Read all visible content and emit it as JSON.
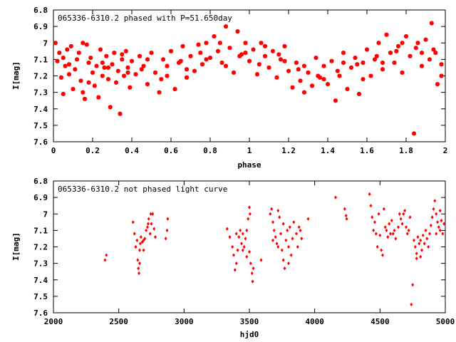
{
  "chart_data": [
    {
      "type": "scatter",
      "title": "065336-6310.2 phased with P=51.650day",
      "xlabel": "phase",
      "ylabel": "I[mag]",
      "xlim": [
        0,
        2
      ],
      "ylim": [
        6.8,
        7.6
      ],
      "y_inverted": true,
      "x_ticks": [
        "0",
        "0.2",
        "0.4",
        "0.6",
        "0.8",
        "1",
        "1.2",
        "1.4",
        "1.6",
        "1.8",
        "2"
      ],
      "y_ticks": [
        "6.8",
        "6.9",
        "7",
        "7.1",
        "7.2",
        "7.3",
        "7.4",
        "7.5",
        "7.6"
      ],
      "grid": false,
      "marker_color": "#ff0000",
      "points": [
        [
          0.01,
          7.0
        ],
        [
          0.02,
          7.11
        ],
        [
          0.03,
          7.06
        ],
        [
          0.04,
          7.21
        ],
        [
          0.05,
          7.31
        ],
        [
          0.06,
          7.14
        ],
        [
          0.07,
          7.04
        ],
        [
          0.08,
          7.19
        ],
        [
          0.09,
          7.02
        ],
        [
          0.1,
          7.28
        ],
        [
          0.11,
          7.16
        ],
        [
          0.12,
          7.1
        ],
        [
          0.13,
          7.06
        ],
        [
          0.14,
          7.23
        ],
        [
          0.15,
          7.3
        ],
        [
          0.16,
          7.34
        ],
        [
          0.17,
          7.01
        ],
        [
          0.18,
          7.12
        ],
        [
          0.19,
          7.09
        ],
        [
          0.2,
          7.18
        ],
        [
          0.21,
          7.26
        ],
        [
          0.22,
          7.14
        ],
        [
          0.23,
          7.33
        ],
        [
          0.24,
          7.04
        ],
        [
          0.25,
          7.2
        ],
        [
          0.26,
          7.15
        ],
        [
          0.27,
          7.08
        ],
        [
          0.28,
          7.22
        ],
        [
          0.29,
          7.39
        ],
        [
          0.3,
          7.13
        ],
        [
          0.31,
          7.06
        ],
        [
          0.32,
          7.24
        ],
        [
          0.33,
          7.17
        ],
        [
          0.34,
          7.43
        ],
        [
          0.35,
          7.1
        ],
        [
          0.36,
          7.2
        ],
        [
          0.37,
          7.05
        ],
        [
          0.38,
          7.15
        ],
        [
          0.39,
          7.27
        ],
        [
          0.4,
          7.11
        ],
        [
          0.42,
          7.19
        ],
        [
          0.44,
          7.08
        ],
        [
          0.46,
          7.14
        ],
        [
          0.48,
          7.25
        ],
        [
          0.5,
          7.06
        ],
        [
          0.52,
          7.18
        ],
        [
          0.54,
          7.3
        ],
        [
          0.56,
          7.1
        ],
        [
          0.58,
          7.2
        ],
        [
          0.6,
          7.05
        ],
        [
          0.62,
          7.28
        ],
        [
          0.64,
          7.12
        ],
        [
          0.66,
          7.02
        ],
        [
          0.68,
          7.21
        ],
        [
          0.7,
          7.08
        ],
        [
          0.72,
          7.17
        ],
        [
          0.74,
          7.01
        ],
        [
          0.76,
          7.13
        ],
        [
          0.78,
          7.0
        ],
        [
          0.8,
          7.09
        ],
        [
          0.82,
          6.96
        ],
        [
          0.84,
          7.05
        ],
        [
          0.86,
          7.12
        ],
        [
          0.88,
          6.9
        ],
        [
          0.9,
          7.03
        ],
        [
          0.92,
          7.18
        ],
        [
          0.94,
          6.93
        ],
        [
          0.96,
          7.07
        ],
        [
          0.98,
          7.0
        ],
        [
          1.0,
          7.11
        ],
        [
          1.02,
          7.04
        ],
        [
          1.04,
          7.19
        ],
        [
          1.06,
          7.0
        ],
        [
          1.08,
          7.08
        ],
        [
          1.1,
          7.15
        ],
        [
          1.12,
          7.05
        ],
        [
          1.14,
          7.21
        ],
        [
          1.16,
          7.1
        ],
        [
          1.18,
          7.02
        ],
        [
          1.2,
          7.17
        ],
        [
          1.22,
          7.27
        ],
        [
          1.24,
          7.12
        ],
        [
          1.26,
          7.23
        ],
        [
          1.28,
          7.3
        ],
        [
          1.3,
          7.18
        ],
        [
          1.32,
          7.26
        ],
        [
          1.34,
          7.09
        ],
        [
          1.36,
          7.21
        ],
        [
          1.38,
          7.14
        ],
        [
          1.4,
          7.25
        ],
        [
          1.42,
          7.11
        ],
        [
          1.44,
          7.35
        ],
        [
          1.46,
          7.2
        ],
        [
          1.48,
          7.06
        ],
        [
          1.5,
          7.28
        ],
        [
          1.52,
          7.15
        ],
        [
          1.54,
          7.09
        ],
        [
          1.56,
          7.31
        ],
        [
          1.58,
          7.12
        ],
        [
          1.6,
          7.04
        ],
        [
          1.62,
          7.2
        ],
        [
          1.64,
          7.1
        ],
        [
          1.66,
          7.0
        ],
        [
          1.68,
          7.16
        ],
        [
          1.7,
          6.95
        ],
        [
          1.72,
          7.06
        ],
        [
          1.74,
          7.12
        ],
        [
          1.76,
          7.02
        ],
        [
          1.78,
          7.18
        ],
        [
          1.8,
          6.96
        ],
        [
          1.82,
          7.08
        ],
        [
          1.84,
          7.55
        ],
        [
          1.86,
          7.0
        ],
        [
          1.88,
          7.14
        ],
        [
          1.9,
          6.98
        ],
        [
          1.92,
          7.1
        ],
        [
          1.93,
          6.88
        ],
        [
          1.94,
          7.04
        ],
        [
          1.96,
          7.25
        ],
        [
          1.98,
          7.13
        ],
        [
          0.05,
          7.09
        ],
        [
          0.15,
          7.0
        ],
        [
          0.25,
          7.12
        ],
        [
          0.35,
          7.07
        ],
        [
          0.45,
          7.16
        ],
        [
          0.55,
          7.22
        ],
        [
          0.65,
          7.11
        ],
        [
          0.75,
          7.06
        ],
        [
          0.85,
          7.0
        ],
        [
          0.95,
          7.08
        ],
        [
          1.05,
          7.13
        ],
        [
          1.15,
          7.07
        ],
        [
          1.25,
          7.16
        ],
        [
          1.35,
          7.2
        ],
        [
          1.45,
          7.17
        ],
        [
          1.55,
          7.13
        ],
        [
          1.65,
          7.08
        ],
        [
          1.75,
          7.05
        ],
        [
          1.85,
          7.03
        ],
        [
          1.95,
          7.06
        ],
        [
          0.08,
          7.13
        ],
        [
          0.18,
          7.24
        ],
        [
          0.28,
          7.15
        ],
        [
          0.38,
          7.18
        ],
        [
          0.48,
          7.1
        ],
        [
          0.58,
          7.14
        ],
        [
          0.68,
          7.16
        ],
        [
          0.78,
          7.1
        ],
        [
          0.88,
          7.14
        ],
        [
          0.98,
          7.06
        ],
        [
          1.08,
          7.02
        ],
        [
          1.18,
          7.11
        ],
        [
          1.28,
          7.14
        ],
        [
          1.38,
          7.22
        ],
        [
          1.48,
          7.12
        ],
        [
          1.58,
          7.22
        ],
        [
          1.68,
          7.12
        ],
        [
          1.78,
          7.0
        ],
        [
          1.88,
          7.06
        ],
        [
          1.98,
          7.2
        ]
      ]
    },
    {
      "type": "scatter",
      "title": "065336-6310.2 not phased light curve",
      "xlabel": "hjd0",
      "ylabel": "I[mag]",
      "xlim": [
        2000,
        5000
      ],
      "ylim": [
        6.8,
        7.6
      ],
      "y_inverted": true,
      "x_ticks": [
        "2000",
        "2500",
        "3000",
        "3500",
        "4000",
        "4500",
        "5000"
      ],
      "y_ticks": [
        "6.8",
        "6.9",
        "7",
        "7.1",
        "7.2",
        "7.3",
        "7.4",
        "7.5",
        "7.6"
      ],
      "grid": false,
      "marker_color": "#ff0000",
      "points": [
        [
          2395,
          7.28
        ],
        [
          2405,
          7.25
        ],
        [
          2610,
          7.05
        ],
        [
          2620,
          7.12
        ],
        [
          2630,
          7.2
        ],
        [
          2640,
          7.16
        ],
        [
          2645,
          7.28
        ],
        [
          2650,
          7.33
        ],
        [
          2655,
          7.36
        ],
        [
          2660,
          7.22
        ],
        [
          2665,
          7.18
        ],
        [
          2670,
          7.14
        ],
        [
          2680,
          7.17
        ],
        [
          2690,
          7.22
        ],
        [
          2700,
          7.15
        ],
        [
          2710,
          7.1
        ],
        [
          2720,
          7.08
        ],
        [
          2730,
          7.03
        ],
        [
          2740,
          7.12
        ],
        [
          2750,
          7.06
        ],
        [
          2760,
          7.0
        ],
        [
          2770,
          7.09
        ],
        [
          2780,
          7.14
        ],
        [
          2660,
          7.3
        ],
        [
          2690,
          7.16
        ],
        [
          2725,
          7.06
        ],
        [
          2745,
          7.0
        ],
        [
          2860,
          7.15
        ],
        [
          2870,
          7.1
        ],
        [
          2875,
          7.03
        ],
        [
          3330,
          7.09
        ],
        [
          3350,
          7.14
        ],
        [
          3370,
          7.2
        ],
        [
          3380,
          7.25
        ],
        [
          3390,
          7.34
        ],
        [
          3400,
          7.3
        ],
        [
          3410,
          7.22
        ],
        [
          3420,
          7.14
        ],
        [
          3430,
          7.1
        ],
        [
          3440,
          7.18
        ],
        [
          3450,
          7.12
        ],
        [
          3460,
          7.2
        ],
        [
          3470,
          7.15
        ],
        [
          3480,
          7.26
        ],
        [
          3490,
          7.03
        ],
        [
          3500,
          6.96
        ],
        [
          3505,
          7.0
        ],
        [
          3510,
          7.3
        ],
        [
          3520,
          7.36
        ],
        [
          3525,
          7.41
        ],
        [
          3530,
          7.33
        ],
        [
          3400,
          7.12
        ],
        [
          3450,
          7.22
        ],
        [
          3480,
          7.1
        ],
        [
          3500,
          7.23
        ],
        [
          3590,
          7.28
        ],
        [
          3660,
          7.0
        ],
        [
          3670,
          6.97
        ],
        [
          3680,
          7.05
        ],
        [
          3690,
          7.1
        ],
        [
          3700,
          7.14
        ],
        [
          3710,
          7.18
        ],
        [
          3720,
          6.98
        ],
        [
          3730,
          7.02
        ],
        [
          3740,
          7.12
        ],
        [
          3750,
          7.22
        ],
        [
          3760,
          7.28
        ],
        [
          3770,
          7.33
        ],
        [
          3780,
          7.16
        ],
        [
          3790,
          7.1
        ],
        [
          3800,
          7.2
        ],
        [
          3810,
          7.08
        ],
        [
          3820,
          7.25
        ],
        [
          3830,
          7.15
        ],
        [
          3840,
          7.05
        ],
        [
          3860,
          7.12
        ],
        [
          3870,
          7.2
        ],
        [
          3880,
          7.08
        ],
        [
          3890,
          7.1
        ],
        [
          3900,
          7.15
        ],
        [
          3680,
          7.16
        ],
        [
          3720,
          7.2
        ],
        [
          3760,
          7.06
        ],
        [
          3800,
          7.3
        ],
        [
          3950,
          7.03
        ],
        [
          4160,
          6.9
        ],
        [
          4230,
          6.97
        ],
        [
          4240,
          7.01
        ],
        [
          4245,
          7.03
        ],
        [
          4420,
          6.88
        ],
        [
          4430,
          6.95
        ],
        [
          4440,
          7.02
        ],
        [
          4450,
          7.1
        ],
        [
          4460,
          7.05
        ],
        [
          4470,
          7.12
        ],
        [
          4480,
          7.2
        ],
        [
          4490,
          7.0
        ],
        [
          4500,
          7.13
        ],
        [
          4510,
          7.22
        ],
        [
          4520,
          7.25
        ],
        [
          4530,
          6.97
        ],
        [
          4540,
          7.08
        ],
        [
          4550,
          7.1
        ],
        [
          4560,
          7.14
        ],
        [
          4570,
          7.06
        ],
        [
          4580,
          7.12
        ],
        [
          4590,
          7.04
        ],
        [
          4600,
          7.12
        ],
        [
          4610,
          7.1
        ],
        [
          4620,
          7.15
        ],
        [
          4640,
          7.08
        ],
        [
          4650,
          7.0
        ],
        [
          4660,
          7.03
        ],
        [
          4670,
          7.06
        ],
        [
          4680,
          7.0
        ],
        [
          4690,
          6.98
        ],
        [
          4700,
          7.08
        ],
        [
          4710,
          7.12
        ],
        [
          4720,
          7.1
        ],
        [
          4730,
          7.02
        ],
        [
          4740,
          7.55
        ],
        [
          4750,
          7.43
        ],
        [
          4760,
          7.16
        ],
        [
          4770,
          7.2
        ],
        [
          4780,
          7.24
        ],
        [
          4790,
          7.14
        ],
        [
          4800,
          7.18
        ],
        [
          4810,
          7.26
        ],
        [
          4820,
          7.22
        ],
        [
          4830,
          7.13
        ],
        [
          4840,
          7.18
        ],
        [
          4850,
          7.1
        ],
        [
          4860,
          7.15
        ],
        [
          4870,
          7.2
        ],
        [
          4880,
          7.12
        ],
        [
          4890,
          7.07
        ],
        [
          4900,
          7.02
        ],
        [
          4910,
          6.97
        ],
        [
          4920,
          6.92
        ],
        [
          4930,
          7.0
        ],
        [
          4940,
          7.05
        ],
        [
          4950,
          7.08
        ],
        [
          4960,
          7.1
        ],
        [
          4970,
          7.04
        ],
        [
          4980,
          7.12
        ],
        [
          4990,
          7.06
        ],
        [
          4930,
          7.12
        ],
        [
          4960,
          6.98
        ],
        [
          4780,
          7.27
        ],
        [
          4810,
          7.16
        ]
      ]
    }
  ]
}
